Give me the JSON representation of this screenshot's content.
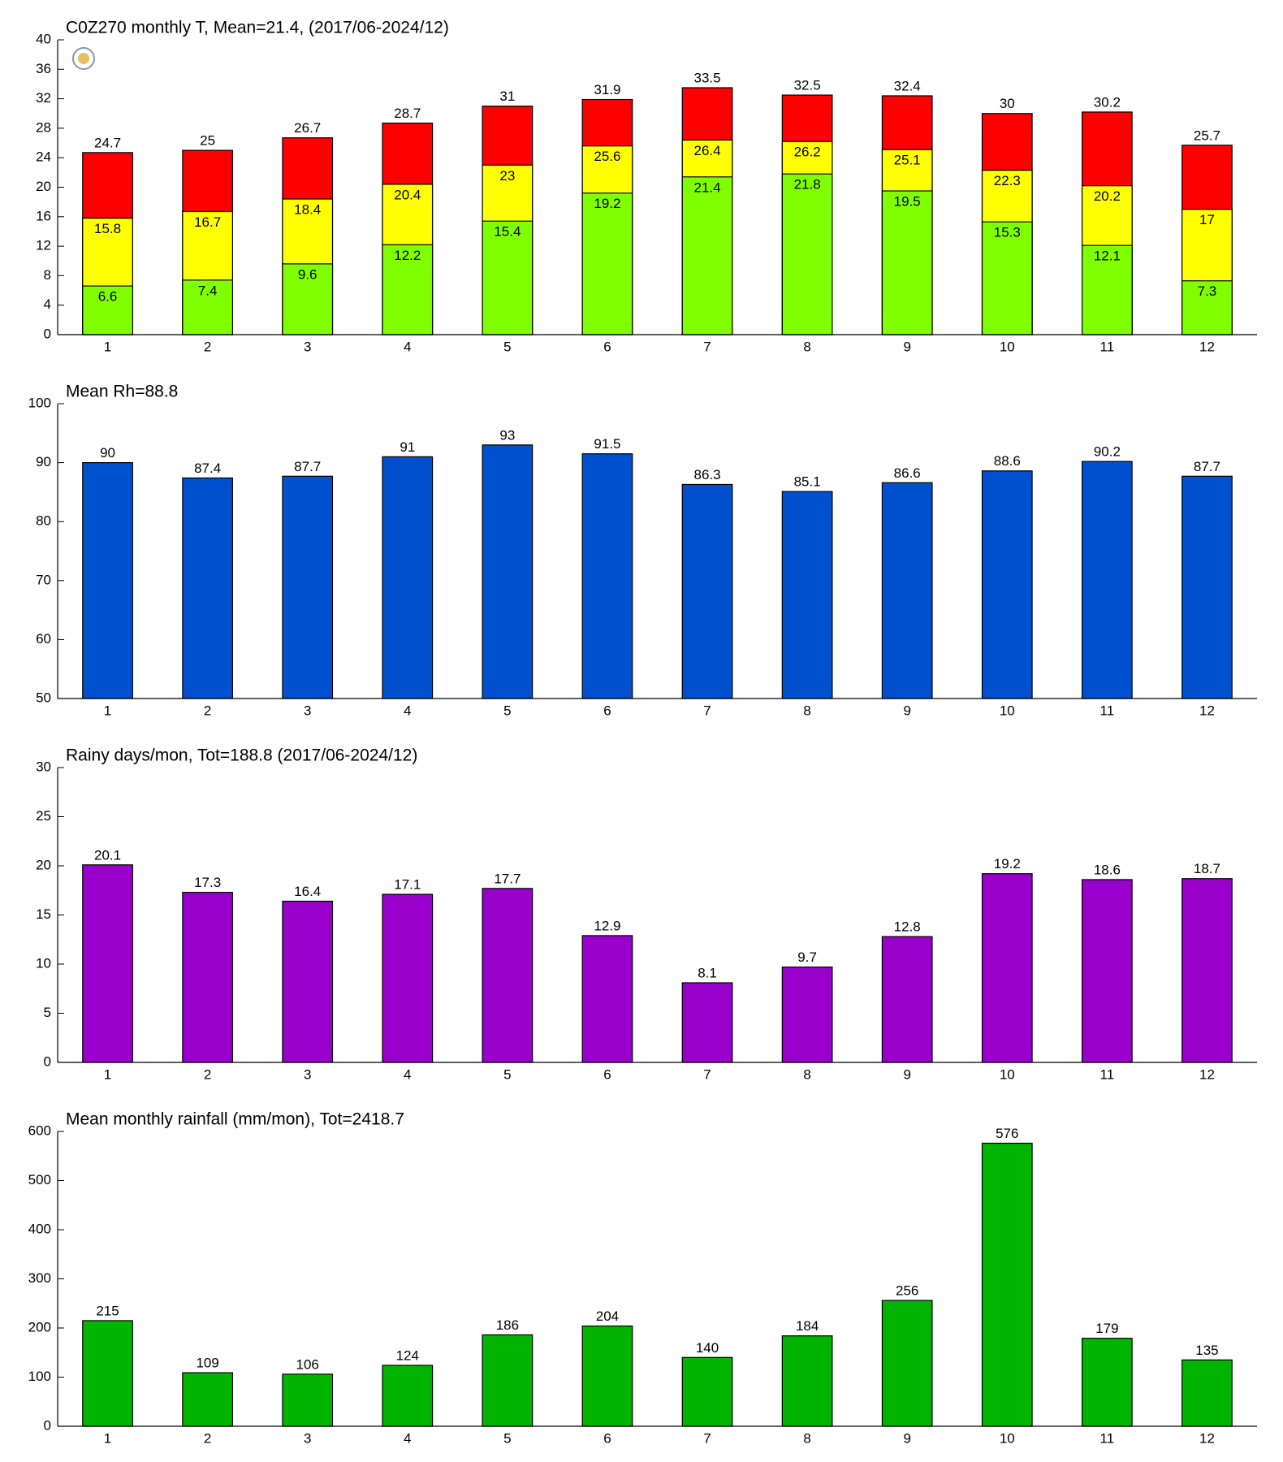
{
  "chart_data": [
    {
      "type": "overlap-bar",
      "title": "C0Z270 monthly T, Mean=21.4, (2017/06-2024/12)",
      "categories": [
        1,
        2,
        3,
        4,
        5,
        6,
        7,
        8,
        9,
        10,
        11,
        12
      ],
      "series": [
        {
          "color": "#80ff00",
          "values": [
            6.6,
            7.4,
            9.6,
            12.2,
            15.4,
            19.2,
            21.4,
            21.8,
            19.5,
            15.3,
            12.1,
            7.3
          ]
        },
        {
          "color": "#ffff00",
          "values": [
            15.8,
            16.7,
            18.4,
            20.4,
            23,
            25.6,
            26.4,
            26.2,
            25.1,
            22.3,
            20.2,
            17
          ]
        },
        {
          "color": "#ff0000",
          "values": [
            24.7,
            25,
            26.7,
            28.7,
            31,
            31.9,
            33.5,
            32.5,
            32.4,
            30,
            30.2,
            25.7
          ]
        }
      ],
      "ylim": [
        0,
        40
      ],
      "yticks": [
        0,
        4,
        8,
        12,
        16,
        20,
        24,
        28,
        32,
        36,
        40
      ]
    },
    {
      "type": "bar",
      "title": "Mean Rh=88.8",
      "categories": [
        1,
        2,
        3,
        4,
        5,
        6,
        7,
        8,
        9,
        10,
        11,
        12
      ],
      "values": [
        90,
        87.4,
        87.7,
        91,
        93,
        91.5,
        86.3,
        85.1,
        86.6,
        88.6,
        90.2,
        87.7
      ],
      "color": "#0050d0",
      "ylim": [
        50,
        100
      ],
      "yticks": [
        50,
        60,
        70,
        80,
        90,
        100
      ]
    },
    {
      "type": "bar",
      "title": "Rainy days/mon, Tot=188.8 (2017/06-2024/12)",
      "categories": [
        1,
        2,
        3,
        4,
        5,
        6,
        7,
        8,
        9,
        10,
        11,
        12
      ],
      "values": [
        20.1,
        17.3,
        16.4,
        17.1,
        17.7,
        12.9,
        8.1,
        9.7,
        12.8,
        19.2,
        18.6,
        18.7
      ],
      "color": "#9900cc",
      "ylim": [
        0,
        30
      ],
      "yticks": [
        0,
        5,
        10,
        15,
        20,
        25,
        30
      ]
    },
    {
      "type": "bar",
      "title": "Mean monthly rainfall (mm/mon), Tot=2418.7",
      "categories": [
        1,
        2,
        3,
        4,
        5,
        6,
        7,
        8,
        9,
        10,
        11,
        12
      ],
      "values": [
        215,
        109,
        106,
        124,
        186,
        204,
        140,
        184,
        256,
        576,
        179,
        135
      ],
      "color": "#00b400",
      "ylim": [
        0,
        600
      ],
      "yticks": [
        0,
        100,
        200,
        300,
        400,
        500,
        600
      ]
    }
  ]
}
